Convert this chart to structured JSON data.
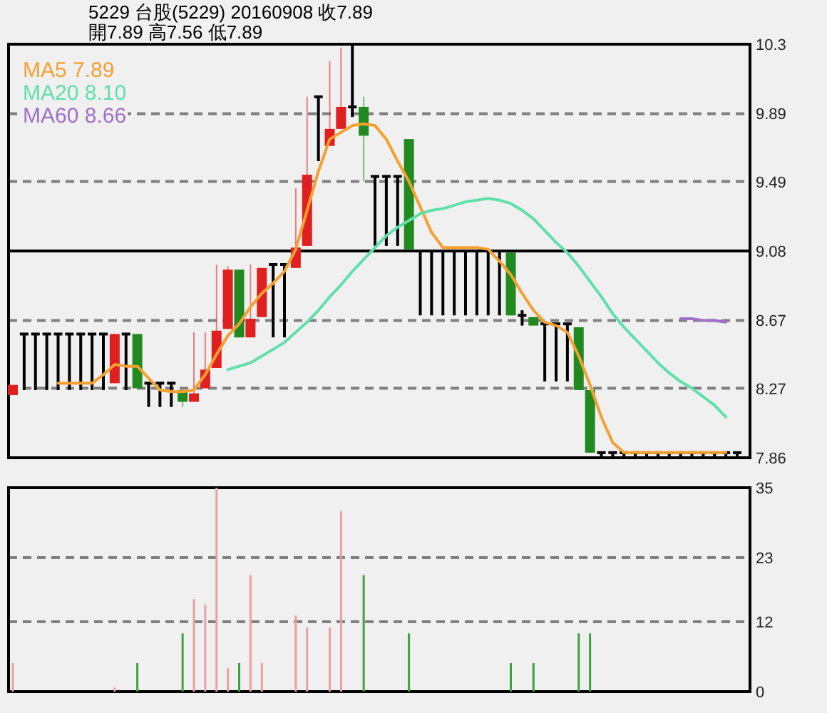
{
  "chart_data": [
    {
      "type": "candlestick",
      "title": "5229  台股(5229) 20160908      收7.89",
      "subtitle": "開7.89   高7.56   低7.89",
      "categories": [
        null,
        null,
        null,
        null,
        null,
        null,
        null,
        null,
        null,
        null,
        null,
        null,
        null,
        null,
        null,
        null,
        null,
        null,
        null,
        null,
        null,
        null,
        null,
        null,
        null,
        null,
        null,
        null,
        null,
        null,
        null,
        null,
        null,
        null,
        null,
        null,
        null,
        null,
        null,
        null,
        null,
        null,
        null,
        null,
        null,
        null,
        null,
        null,
        null,
        null,
        null,
        null,
        null,
        null,
        null,
        null,
        null,
        null,
        null,
        null,
        null,
        null,
        null,
        null,
        null
      ],
      "ohlc": [
        [
          8.23,
          8.29,
          8.23,
          8.29
        ],
        [
          8.59,
          8.59,
          8.26,
          8.59
        ],
        [
          8.59,
          8.59,
          8.26,
          8.59
        ],
        [
          8.59,
          8.59,
          8.26,
          8.59
        ],
        [
          8.59,
          8.59,
          8.26,
          8.59
        ],
        [
          8.59,
          8.59,
          8.26,
          8.59
        ],
        [
          8.59,
          8.59,
          8.26,
          8.59
        ],
        [
          8.59,
          8.59,
          8.26,
          8.59
        ],
        [
          8.59,
          8.59,
          8.26,
          8.59
        ],
        [
          8.3,
          8.59,
          8.3,
          8.59
        ],
        [
          8.59,
          8.59,
          8.26,
          8.59
        ],
        [
          8.59,
          8.59,
          8.27,
          8.27
        ],
        [
          8.3,
          8.3,
          8.16,
          8.3
        ],
        [
          8.3,
          8.3,
          8.16,
          8.3
        ],
        [
          8.3,
          8.3,
          8.16,
          8.3
        ],
        [
          8.26,
          8.26,
          8.16,
          8.19
        ],
        [
          8.19,
          8.6,
          8.19,
          8.24
        ],
        [
          8.27,
          8.6,
          8.27,
          8.38
        ],
        [
          8.39,
          9.0,
          8.39,
          8.61
        ],
        [
          8.62,
          8.99,
          8.62,
          8.97
        ],
        [
          8.97,
          8.97,
          8.57,
          8.57
        ],
        [
          8.57,
          9.0,
          8.57,
          8.68
        ],
        [
          8.69,
          8.98,
          8.69,
          8.98
        ],
        [
          9.0,
          9.0,
          8.57,
          9.0
        ],
        [
          9.0,
          9.0,
          8.57,
          9.0
        ],
        [
          8.98,
          9.45,
          8.98,
          9.1
        ],
        [
          9.11,
          9.99,
          9.11,
          9.53
        ],
        [
          9.99,
          9.99,
          9.61,
          9.99
        ],
        [
          9.7,
          10.2,
          9.7,
          9.8
        ],
        [
          9.8,
          10.28,
          9.8,
          9.93
        ],
        [
          9.93,
          10.3,
          9.87,
          9.93
        ],
        [
          9.93,
          9.99,
          9.49,
          9.76
        ],
        [
          9.52,
          9.52,
          9.11,
          9.52
        ],
        [
          9.52,
          9.52,
          9.11,
          9.52
        ],
        [
          9.52,
          9.52,
          9.11,
          9.52
        ],
        [
          9.74,
          9.74,
          9.09,
          9.09
        ],
        [
          9.08,
          9.08,
          8.7,
          9.08
        ],
        [
          9.08,
          9.08,
          8.7,
          9.08
        ],
        [
          9.08,
          9.08,
          8.7,
          9.08
        ],
        [
          9.08,
          9.08,
          8.7,
          9.08
        ],
        [
          9.08,
          9.08,
          8.7,
          9.08
        ],
        [
          9.08,
          9.08,
          8.7,
          9.08
        ],
        [
          9.08,
          9.08,
          8.7,
          9.08
        ],
        [
          9.08,
          9.08,
          8.7,
          9.08
        ],
        [
          9.07,
          9.07,
          8.7,
          8.7
        ],
        [
          8.7,
          8.73,
          8.64,
          8.7
        ],
        [
          8.69,
          8.69,
          8.64,
          8.64
        ],
        [
          8.65,
          8.65,
          8.31,
          8.65
        ],
        [
          8.65,
          8.65,
          8.31,
          8.65
        ],
        [
          8.65,
          8.65,
          8.31,
          8.65
        ],
        [
          8.63,
          8.63,
          8.26,
          8.26
        ],
        [
          8.26,
          8.26,
          7.89,
          7.89
        ],
        [
          7.89,
          7.89,
          7.86,
          7.89
        ],
        [
          7.89,
          7.89,
          7.86,
          7.89
        ],
        [
          7.89,
          7.89,
          7.86,
          7.89
        ],
        [
          7.89,
          7.89,
          7.86,
          7.89
        ],
        [
          7.89,
          7.89,
          7.86,
          7.89
        ],
        [
          7.89,
          7.89,
          7.86,
          7.89
        ],
        [
          7.89,
          7.89,
          7.86,
          7.89
        ],
        [
          7.89,
          7.89,
          7.86,
          7.89
        ],
        [
          7.89,
          7.89,
          7.86,
          7.89
        ],
        [
          7.89,
          7.89,
          7.86,
          7.89
        ],
        [
          7.89,
          7.89,
          7.86,
          7.89
        ],
        [
          7.89,
          7.89,
          7.86,
          7.89
        ],
        [
          7.89,
          7.89,
          7.86,
          7.89
        ]
      ],
      "colors": [
        "#e02020",
        "#000000",
        "#000000",
        "#000000",
        "#000000",
        "#000000",
        "#000000",
        "#000000",
        "#000000",
        "#e02020",
        "#000000",
        "#208a20",
        "#000000",
        "#000000",
        "#000000",
        "#208a20",
        "#e02020",
        "#e02020",
        "#e02020",
        "#e02020",
        "#208a20",
        "#e02020",
        "#e02020",
        "#000000",
        "#000000",
        "#e02020",
        "#e02020",
        "#000000",
        "#e02020",
        "#e02020",
        "#000000",
        "#208a20",
        "#000000",
        "#000000",
        "#000000",
        "#208a20",
        "#000000",
        "#000000",
        "#000000",
        "#000000",
        "#000000",
        "#000000",
        "#000000",
        "#000000",
        "#208a20",
        "#000000",
        "#208a20",
        "#000000",
        "#000000",
        "#000000",
        "#208a20",
        "#208a20",
        "#000000",
        "#000000",
        "#000000",
        "#000000",
        "#000000",
        "#000000",
        "#000000",
        "#000000",
        "#000000",
        "#000000",
        "#000000",
        "#000000",
        "#000000"
      ],
      "series": [
        {
          "type": "line",
          "name": "MA5 7.89",
          "color": "#f5a030",
          "values": [
            null,
            null,
            null,
            null,
            8.3,
            8.3,
            8.3,
            8.3,
            8.35,
            8.41,
            8.4,
            8.4,
            8.33,
            8.26,
            8.25,
            8.25,
            8.26,
            8.35,
            8.47,
            8.58,
            8.65,
            8.75,
            8.83,
            8.89,
            8.96,
            9.09,
            9.32,
            9.55,
            9.74,
            9.78,
            9.82,
            9.83,
            9.82,
            9.74,
            9.61,
            9.49,
            9.34,
            9.19,
            9.1,
            9.1,
            9.1,
            9.1,
            9.09,
            9.02,
            8.94,
            8.83,
            8.73,
            8.66,
            8.64,
            8.6,
            8.46,
            8.29,
            8.1,
            7.95,
            7.89,
            7.89,
            7.89,
            7.89,
            7.89,
            7.89,
            7.89,
            7.89,
            7.89,
            7.89,
            null
          ]
        },
        {
          "type": "line",
          "name": "MA20 8.10",
          "color": "#60e0a8",
          "values": [
            null,
            null,
            null,
            null,
            null,
            null,
            null,
            null,
            null,
            null,
            null,
            null,
            null,
            null,
            null,
            null,
            null,
            null,
            null,
            8.38,
            8.4,
            8.42,
            8.46,
            8.5,
            8.54,
            8.6,
            8.66,
            8.73,
            8.81,
            8.88,
            8.96,
            9.03,
            9.1,
            9.17,
            9.22,
            9.26,
            9.3,
            9.32,
            9.33,
            9.35,
            9.37,
            9.38,
            9.39,
            9.38,
            9.36,
            9.32,
            9.27,
            9.2,
            9.13,
            9.07,
            8.99,
            8.9,
            8.81,
            8.71,
            8.63,
            8.56,
            8.49,
            8.42,
            8.36,
            8.31,
            8.27,
            8.22,
            8.17,
            8.1,
            null
          ]
        },
        {
          "type": "line",
          "name": "MA60 8.66",
          "color": "#a070c8",
          "values": [
            null,
            null,
            null,
            null,
            null,
            null,
            null,
            null,
            null,
            null,
            null,
            null,
            null,
            null,
            null,
            null,
            null,
            null,
            null,
            null,
            null,
            null,
            null,
            null,
            null,
            null,
            null,
            null,
            null,
            null,
            null,
            null,
            null,
            null,
            null,
            null,
            null,
            null,
            null,
            null,
            null,
            null,
            null,
            null,
            null,
            null,
            null,
            null,
            null,
            null,
            null,
            null,
            null,
            null,
            null,
            null,
            null,
            null,
            null,
            8.68,
            8.68,
            8.67,
            8.67,
            8.66,
            null
          ]
        }
      ],
      "ylim": [
        7.86,
        10.3
      ],
      "yticks": [
        7.86,
        8.27,
        8.67,
        9.08,
        9.49,
        9.89,
        10.3
      ],
      "grid": "y",
      "legend": "top left",
      "tick_labels": "y",
      "ref_lines": [
        {
          "axis": "y",
          "value": 9.08,
          "color": "#000000",
          "line_style": "solid"
        }
      ]
    },
    {
      "type": "bar",
      "categories": [
        null,
        null,
        null,
        null,
        null,
        null,
        null,
        null,
        null,
        null,
        null,
        null,
        null,
        null,
        null,
        null,
        null,
        null,
        null,
        null,
        null,
        null,
        null,
        null,
        null,
        null,
        null,
        null,
        null,
        null,
        null,
        null,
        null,
        null,
        null,
        null,
        null,
        null,
        null,
        null,
        null,
        null,
        null,
        null,
        null,
        null,
        null,
        null,
        null,
        null,
        null,
        null,
        null,
        null,
        null,
        null,
        null,
        null,
        null,
        null,
        null,
        null,
        null,
        null,
        null
      ],
      "values": [
        4.9,
        null,
        null,
        null,
        null,
        null,
        null,
        null,
        null,
        0.7,
        null,
        4.9,
        null,
        null,
        null,
        10,
        15.9,
        14.9,
        35,
        4,
        4.9,
        20,
        4.9,
        null,
        null,
        13,
        11,
        null,
        11,
        31,
        null,
        20,
        null,
        null,
        null,
        10,
        null,
        null,
        null,
        null,
        null,
        null,
        null,
        null,
        4.9,
        null,
        4.9,
        null,
        null,
        null,
        10,
        10,
        null,
        null,
        null,
        null,
        null,
        null,
        null,
        null,
        null,
        null,
        null,
        null,
        null
      ],
      "colors": [
        "#e8a0a0",
        null,
        null,
        null,
        null,
        null,
        null,
        null,
        null,
        "#e8a0a0",
        null,
        "#40a040",
        null,
        null,
        null,
        "#40a040",
        "#e8a0a0",
        "#e8a0a0",
        "#e8a0a0",
        "#e8a0a0",
        "#40a040",
        "#e8a0a0",
        "#e8a0a0",
        null,
        null,
        "#e8a0a0",
        "#e8a0a0",
        null,
        "#e8a0a0",
        "#e8a0a0",
        null,
        "#40a040",
        null,
        null,
        null,
        "#40a040",
        null,
        null,
        null,
        null,
        null,
        null,
        null,
        null,
        "#40a040",
        null,
        "#40a040",
        null,
        null,
        null,
        "#40a040",
        "#40a040",
        null,
        null,
        null,
        null,
        null,
        null,
        null,
        null,
        null,
        null,
        null,
        null,
        null
      ],
      "ylim": [
        0,
        35
      ],
      "yticks": [
        0,
        12,
        23,
        35
      ],
      "grid": "y",
      "tick_labels": "y"
    }
  ]
}
